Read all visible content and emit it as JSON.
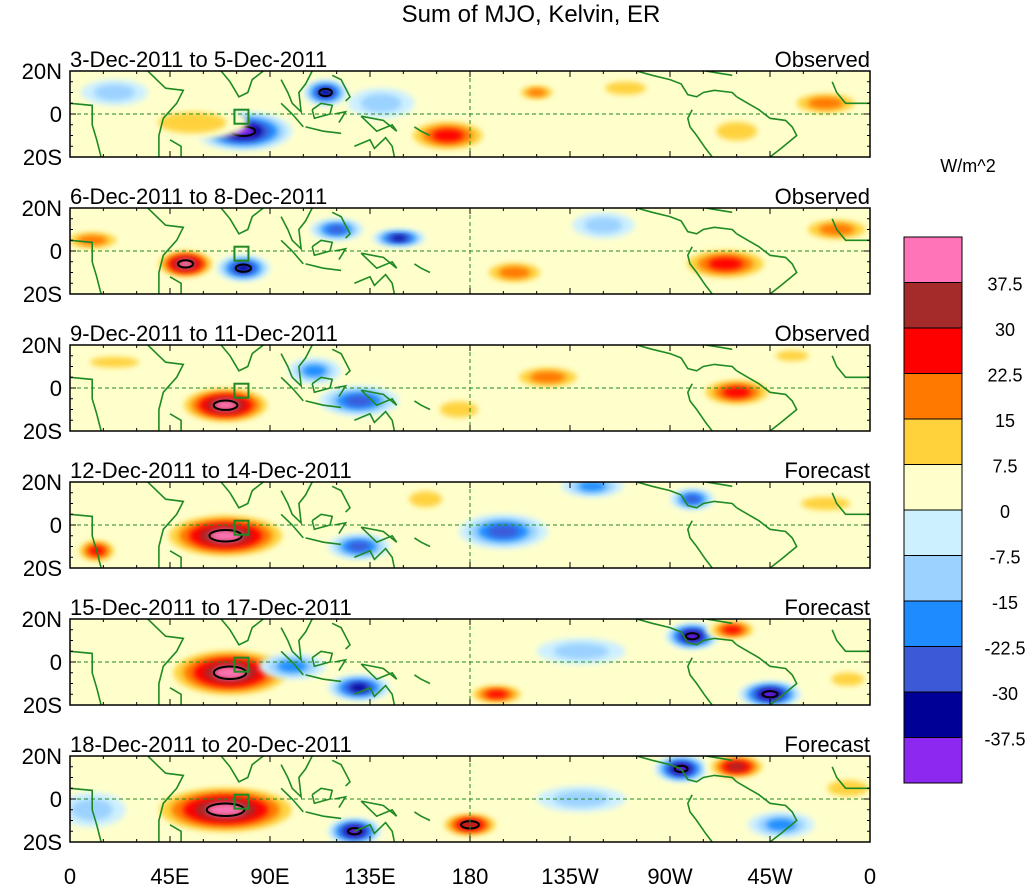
{
  "chart_data": {
    "type": "heatmap",
    "title": "Sum of MJO, Kelvin, ER",
    "units": "W/m^2",
    "x_ticks": [
      "0",
      "45E",
      "90E",
      "135E",
      "180",
      "135W",
      "90W",
      "45W",
      "0"
    ],
    "y_ticks": [
      "20N",
      "0",
      "20S"
    ],
    "lon_range": [
      0,
      360
    ],
    "lat_range": [
      -20,
      20
    ],
    "colorbar": {
      "levels": [
        "37.5",
        "30",
        "22.5",
        "15",
        "7.5",
        "0",
        "-7.5",
        "-15",
        "-22.5",
        "-30",
        "-37.5"
      ],
      "colors": [
        "#ff74b8",
        "#a52a2a",
        "#ff0000",
        "#ff7800",
        "#ffd23c",
        "#ffffcc",
        "#cdf0ff",
        "#9bd2ff",
        "#1e8cff",
        "#3c5ad7",
        "#000096",
        "#8c28f0"
      ]
    },
    "panels": [
      {
        "period": "3-Dec-2011 to 5-Dec-2011",
        "status": "Observed",
        "anomalies": [
          {
            "lon": 78,
            "lat": -8,
            "rx": 22,
            "ry": 9,
            "v": -40
          },
          {
            "lon": 115,
            "lat": 10,
            "rx": 10,
            "ry": 6,
            "v": -35
          },
          {
            "lon": 55,
            "lat": -4,
            "rx": 25,
            "ry": 8,
            "v": 15
          },
          {
            "lon": 170,
            "lat": -10,
            "rx": 20,
            "ry": 8,
            "v": 25
          },
          {
            "lon": 210,
            "lat": 10,
            "rx": 10,
            "ry": 4,
            "v": 20
          },
          {
            "lon": 250,
            "lat": 12,
            "rx": 15,
            "ry": 5,
            "v": 15
          },
          {
            "lon": 340,
            "lat": 5,
            "rx": 18,
            "ry": 6,
            "v": 20
          },
          {
            "lon": 300,
            "lat": -8,
            "rx": 15,
            "ry": 7,
            "v": 12
          },
          {
            "lon": 140,
            "lat": 5,
            "rx": 15,
            "ry": 7,
            "v": -15
          },
          {
            "lon": 20,
            "lat": 10,
            "rx": 15,
            "ry": 6,
            "v": -10
          }
        ]
      },
      {
        "period": "6-Dec-2011 to 8-Dec-2011",
        "status": "Observed",
        "anomalies": [
          {
            "lon": 52,
            "lat": -6,
            "rx": 14,
            "ry": 7,
            "v": 40
          },
          {
            "lon": 78,
            "lat": -8,
            "rx": 12,
            "ry": 6,
            "v": -35
          },
          {
            "lon": 120,
            "lat": 10,
            "rx": 12,
            "ry": 5,
            "v": -30
          },
          {
            "lon": 148,
            "lat": 6,
            "rx": 12,
            "ry": 4,
            "v": -32
          },
          {
            "lon": 200,
            "lat": -10,
            "rx": 16,
            "ry": 6,
            "v": 20
          },
          {
            "lon": 295,
            "lat": -6,
            "rx": 22,
            "ry": 8,
            "v": 25
          },
          {
            "lon": 345,
            "lat": 10,
            "rx": 18,
            "ry": 6,
            "v": 20
          },
          {
            "lon": 10,
            "lat": 5,
            "rx": 15,
            "ry": 5,
            "v": 18
          },
          {
            "lon": 240,
            "lat": 12,
            "rx": 14,
            "ry": 6,
            "v": -15
          }
        ]
      },
      {
        "period": "9-Dec-2011 to 11-Dec-2011",
        "status": "Observed",
        "anomalies": [
          {
            "lon": 70,
            "lat": -8,
            "rx": 22,
            "ry": 9,
            "v": 45
          },
          {
            "lon": 130,
            "lat": -6,
            "rx": 18,
            "ry": 7,
            "v": -25
          },
          {
            "lon": 110,
            "lat": 8,
            "rx": 12,
            "ry": 6,
            "v": -18
          },
          {
            "lon": 215,
            "lat": 5,
            "rx": 18,
            "ry": 6,
            "v": 18
          },
          {
            "lon": 300,
            "lat": -2,
            "rx": 18,
            "ry": 7,
            "v": 25
          },
          {
            "lon": 175,
            "lat": -10,
            "rx": 14,
            "ry": 6,
            "v": 15
          },
          {
            "lon": 20,
            "lat": 12,
            "rx": 18,
            "ry": 4,
            "v": 15
          },
          {
            "lon": 325,
            "lat": 15,
            "rx": 12,
            "ry": 4,
            "v": 15
          }
        ]
      },
      {
        "period": "12-Dec-2011 to 14-Dec-2011",
        "status": "Forecast",
        "anomalies": [
          {
            "lon": 70,
            "lat": -5,
            "rx": 30,
            "ry": 11,
            "v": 45
          },
          {
            "lon": 12,
            "lat": -12,
            "rx": 10,
            "ry": 6,
            "v": 28
          },
          {
            "lon": 130,
            "lat": -10,
            "rx": 14,
            "ry": 6,
            "v": -30
          },
          {
            "lon": 195,
            "lat": -3,
            "rx": 20,
            "ry": 8,
            "v": -25
          },
          {
            "lon": 235,
            "lat": 18,
            "rx": 14,
            "ry": 5,
            "v": -20
          },
          {
            "lon": 280,
            "lat": 12,
            "rx": 10,
            "ry": 5,
            "v": -25
          },
          {
            "lon": 160,
            "lat": 12,
            "rx": 12,
            "ry": 6,
            "v": 15
          },
          {
            "lon": 340,
            "lat": 10,
            "rx": 18,
            "ry": 5,
            "v": 15
          }
        ]
      },
      {
        "period": "15-Dec-2011 to 17-Dec-2011",
        "status": "Forecast",
        "anomalies": [
          {
            "lon": 72,
            "lat": -5,
            "rx": 30,
            "ry": 12,
            "v": 48
          },
          {
            "lon": 130,
            "lat": -12,
            "rx": 14,
            "ry": 6,
            "v": -32
          },
          {
            "lon": 280,
            "lat": 12,
            "rx": 12,
            "ry": 6,
            "v": -40
          },
          {
            "lon": 315,
            "lat": -15,
            "rx": 14,
            "ry": 6,
            "v": -38
          },
          {
            "lon": 192,
            "lat": -15,
            "rx": 14,
            "ry": 5,
            "v": 30
          },
          {
            "lon": 298,
            "lat": 15,
            "rx": 12,
            "ry": 5,
            "v": 28
          },
          {
            "lon": 230,
            "lat": 5,
            "rx": 20,
            "ry": 6,
            "v": -15
          },
          {
            "lon": 100,
            "lat": -2,
            "rx": 15,
            "ry": 6,
            "v": -18
          },
          {
            "lon": 350,
            "lat": -8,
            "rx": 12,
            "ry": 5,
            "v": 12
          }
        ]
      },
      {
        "period": "18-Dec-2011 to 20-Dec-2011",
        "status": "Forecast",
        "anomalies": [
          {
            "lon": 70,
            "lat": -5,
            "rx": 35,
            "ry": 12,
            "v": 48
          },
          {
            "lon": 128,
            "lat": -15,
            "rx": 12,
            "ry": 6,
            "v": -40
          },
          {
            "lon": 275,
            "lat": 14,
            "rx": 12,
            "ry": 6,
            "v": -40
          },
          {
            "lon": 300,
            "lat": 15,
            "rx": 14,
            "ry": 6,
            "v": 32
          },
          {
            "lon": 180,
            "lat": -12,
            "rx": 14,
            "ry": 6,
            "v": 35
          },
          {
            "lon": 320,
            "lat": -12,
            "rx": 15,
            "ry": 6,
            "v": -20
          },
          {
            "lon": 230,
            "lat": 0,
            "rx": 20,
            "ry": 6,
            "v": -15
          },
          {
            "lon": 10,
            "lat": -5,
            "rx": 15,
            "ry": 8,
            "v": -15
          },
          {
            "lon": 350,
            "lat": 5,
            "rx": 15,
            "ry": 6,
            "v": 12
          }
        ]
      }
    ]
  }
}
